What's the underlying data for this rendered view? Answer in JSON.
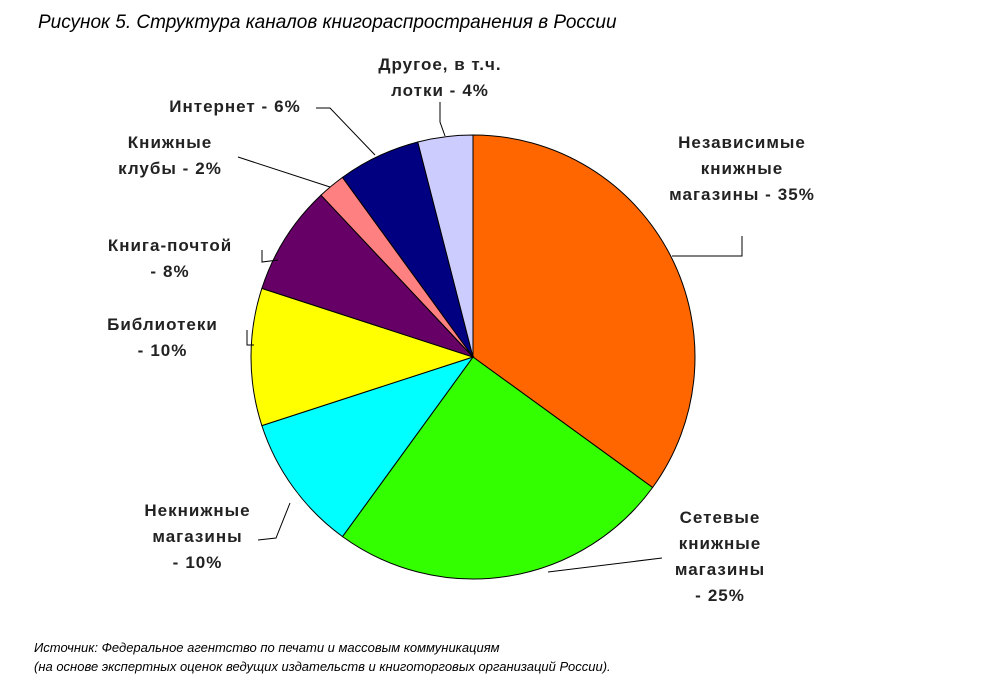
{
  "chart_data": {
    "type": "pie",
    "title": "Рисунок 5. Структура каналов книгораспространения в России",
    "categories": [
      "Независимые книжные магазины -",
      "Сетевые книжные магазины -",
      "Некнижные магазины -",
      "Библиотеки -",
      "Книга-почтой -",
      "Книжные клубы -",
      "Интернет -",
      "Другое, в т.ч. лотки -"
    ],
    "values": [
      35,
      25,
      10,
      10,
      8,
      2,
      6,
      4
    ],
    "value_labels": [
      "35%",
      "25%",
      "10%",
      "10%",
      "8%",
      "2%",
      "6%",
      "4%"
    ],
    "colors": [
      "#ff6600",
      "#33ff00",
      "#00ffff",
      "#ffff00",
      "#660066",
      "#ff8080",
      "#000080",
      "#ccccff"
    ],
    "source": [
      "Источник: Федеральное агентство по печати и массовым коммуникациям",
      "(на основе экспертных оценок ведущих издательств и книготорговых организаций России)."
    ]
  }
}
